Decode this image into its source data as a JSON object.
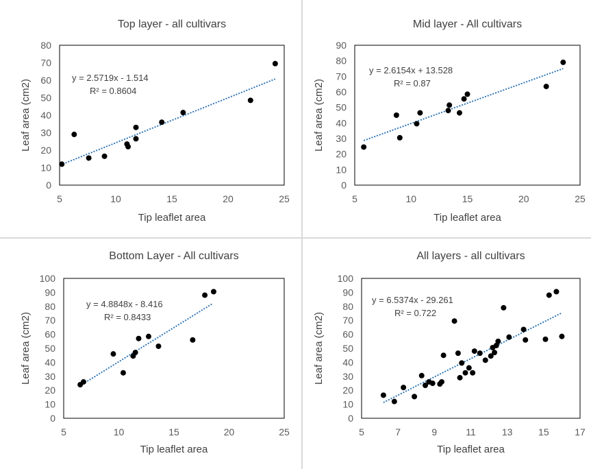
{
  "chart_data": [
    {
      "type": "scatter",
      "title": "Top layer - all cultivars",
      "xlabel": "Tip leaflet area",
      "ylabel": "Leaf area (cm2)",
      "xlim": [
        5,
        25
      ],
      "ylim": [
        0,
        80
      ],
      "xticks": [
        "5",
        "10",
        "15",
        "20",
        "25"
      ],
      "yticks": [
        "0",
        "10",
        "20",
        "30",
        "40",
        "50",
        "60",
        "70",
        "80"
      ],
      "grid": false,
      "legend": "none",
      "trendline": {
        "slope": 2.5719,
        "intercept": -1.514,
        "x_range": [
          5.3,
          24.2
        ]
      },
      "equation": "y = 2.5719x - 1.514",
      "r2": "R² = 0.8604",
      "marker_color": "#000000",
      "trend_color": "#2e75b6",
      "points": [
        {
          "x": 5.2,
          "y": 12
        },
        {
          "x": 6.3,
          "y": 29
        },
        {
          "x": 7.6,
          "y": 15.5
        },
        {
          "x": 9.0,
          "y": 16.5
        },
        {
          "x": 11.0,
          "y": 23.5
        },
        {
          "x": 11.1,
          "y": 22
        },
        {
          "x": 11.8,
          "y": 33
        },
        {
          "x": 11.8,
          "y": 26.5
        },
        {
          "x": 14.1,
          "y": 36
        },
        {
          "x": 16.0,
          "y": 41.5
        },
        {
          "x": 22.0,
          "y": 48.5
        },
        {
          "x": 24.2,
          "y": 69.5
        }
      ]
    },
    {
      "type": "scatter",
      "title": "Mid layer - All cultivars",
      "xlabel": "Tip leaflet area",
      "ylabel": "Leaf area (cm2)",
      "xlim": [
        5,
        25
      ],
      "ylim": [
        0,
        90
      ],
      "xticks": [
        "5",
        "10",
        "15",
        "20",
        "25"
      ],
      "yticks": [
        "0",
        "10",
        "20",
        "30",
        "40",
        "50",
        "60",
        "70",
        "80",
        "90"
      ],
      "grid": false,
      "legend": "none",
      "trendline": {
        "slope": 2.6154,
        "intercept": 13.528,
        "x_range": [
          5.8,
          23.5
        ]
      },
      "equation": "y = 2.6154x + 13.528",
      "r2": "R² = 0.87",
      "marker_color": "#000000",
      "trend_color": "#2e75b6",
      "points": [
        {
          "x": 5.8,
          "y": 24.5
        },
        {
          "x": 8.7,
          "y": 45
        },
        {
          "x": 9.0,
          "y": 30.5
        },
        {
          "x": 10.5,
          "y": 39.5
        },
        {
          "x": 10.8,
          "y": 46.5
        },
        {
          "x": 13.3,
          "y": 48
        },
        {
          "x": 13.4,
          "y": 51.5
        },
        {
          "x": 14.3,
          "y": 46.5
        },
        {
          "x": 14.7,
          "y": 55.5
        },
        {
          "x": 15.0,
          "y": 58.5
        },
        {
          "x": 22.0,
          "y": 63.5
        },
        {
          "x": 23.5,
          "y": 79
        }
      ]
    },
    {
      "type": "scatter",
      "title": "Bottom Layer - All cultivars",
      "xlabel": "Tip leaflet area",
      "ylabel": "Leaf area (cm2)",
      "xlim": [
        5,
        25
      ],
      "ylim": [
        0,
        100
      ],
      "xticks": [
        "5",
        "10",
        "15",
        "20",
        "25"
      ],
      "yticks": [
        "0",
        "10",
        "20",
        "30",
        "40",
        "50",
        "60",
        "70",
        "80",
        "90",
        "100"
      ],
      "grid": false,
      "legend": "none",
      "trendline": {
        "slope": 4.8848,
        "intercept": -8.416,
        "x_range": [
          6.5,
          18.5
        ]
      },
      "equation": "y = 4.8848x - 8.416",
      "r2": "R² = 0.8433",
      "marker_color": "#000000",
      "trend_color": "#2e75b6",
      "points": [
        {
          "x": 6.5,
          "y": 24
        },
        {
          "x": 6.8,
          "y": 26
        },
        {
          "x": 9.5,
          "y": 46
        },
        {
          "x": 10.4,
          "y": 32.5
        },
        {
          "x": 11.3,
          "y": 44.5
        },
        {
          "x": 11.5,
          "y": 47
        },
        {
          "x": 11.8,
          "y": 57
        },
        {
          "x": 12.7,
          "y": 58.5
        },
        {
          "x": 13.6,
          "y": 51.5
        },
        {
          "x": 16.7,
          "y": 56
        },
        {
          "x": 17.8,
          "y": 88
        },
        {
          "x": 18.6,
          "y": 90.5
        }
      ]
    },
    {
      "type": "scatter",
      "title": "All layers - all cultivars",
      "xlabel": "Tip leaflet area",
      "ylabel": "Leaf area (cm2)",
      "xlim": [
        5,
        17
      ],
      "ylim": [
        0,
        100
      ],
      "xticks": [
        "5",
        "7",
        "9",
        "11",
        "13",
        "15",
        "17"
      ],
      "yticks": [
        "0",
        "10",
        "20",
        "30",
        "40",
        "50",
        "60",
        "70",
        "80",
        "90",
        "100"
      ],
      "grid": false,
      "legend": "none",
      "trendline": {
        "slope": 6.5374,
        "intercept": -29.261,
        "x_range": [
          6.2,
          16.0
        ]
      },
      "equation": "y = 6.5374x - 29.261",
      "r2": "R² = 0.722",
      "marker_color": "#000000",
      "trend_color": "#2e75b6",
      "points": [
        {
          "x": 6.2,
          "y": 16.5
        },
        {
          "x": 6.8,
          "y": 12
        },
        {
          "x": 7.3,
          "y": 22
        },
        {
          "x": 7.9,
          "y": 15.5
        },
        {
          "x": 8.3,
          "y": 30.5
        },
        {
          "x": 8.5,
          "y": 23.5
        },
        {
          "x": 8.7,
          "y": 26
        },
        {
          "x": 8.9,
          "y": 25
        },
        {
          "x": 9.3,
          "y": 24.5
        },
        {
          "x": 9.4,
          "y": 26
        },
        {
          "x": 9.5,
          "y": 45
        },
        {
          "x": 10.1,
          "y": 69.5
        },
        {
          "x": 10.3,
          "y": 46.5
        },
        {
          "x": 10.4,
          "y": 29
        },
        {
          "x": 10.5,
          "y": 39.5
        },
        {
          "x": 10.7,
          "y": 32.5
        },
        {
          "x": 10.9,
          "y": 36
        },
        {
          "x": 11.1,
          "y": 32.5
        },
        {
          "x": 11.2,
          "y": 48
        },
        {
          "x": 11.5,
          "y": 46.5
        },
        {
          "x": 11.8,
          "y": 41.5
        },
        {
          "x": 12.1,
          "y": 44.5
        },
        {
          "x": 12.2,
          "y": 50.5
        },
        {
          "x": 12.3,
          "y": 47
        },
        {
          "x": 12.4,
          "y": 52
        },
        {
          "x": 12.5,
          "y": 55
        },
        {
          "x": 12.8,
          "y": 79
        },
        {
          "x": 13.1,
          "y": 58
        },
        {
          "x": 13.9,
          "y": 63.5
        },
        {
          "x": 14.0,
          "y": 56
        },
        {
          "x": 15.1,
          "y": 56.5
        },
        {
          "x": 15.3,
          "y": 88
        },
        {
          "x": 15.7,
          "y": 90.5
        },
        {
          "x": 16.0,
          "y": 58.5
        }
      ]
    }
  ]
}
